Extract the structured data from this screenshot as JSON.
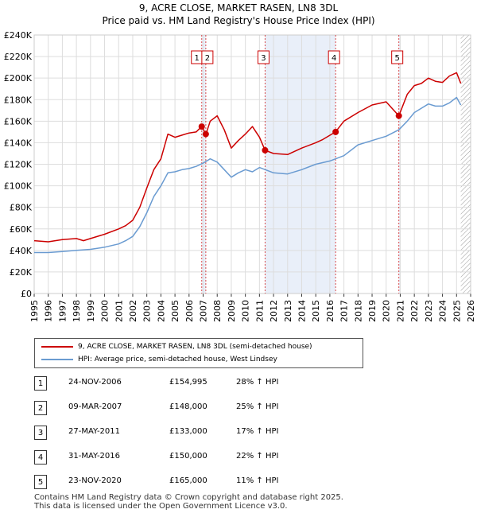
{
  "chart_data": {
    "type": "line",
    "title": "9, ACRE CLOSE, MARKET RASEN, LN8 3DL",
    "subtitle": "Price paid vs. HM Land Registry's House Price Index (HPI)",
    "ylim": [
      0,
      240000
    ],
    "xlim": [
      1995,
      2026
    ],
    "yticks": [
      0,
      20000,
      40000,
      60000,
      80000,
      100000,
      120000,
      140000,
      160000,
      180000,
      200000,
      220000,
      240000
    ],
    "ytick_labels": [
      "£0",
      "£20K",
      "£40K",
      "£60K",
      "£80K",
      "£100K",
      "£120K",
      "£140K",
      "£160K",
      "£180K",
      "£200K",
      "£220K",
      "£240K"
    ],
    "xticks": [
      1995,
      1996,
      1997,
      1998,
      1999,
      2000,
      2001,
      2002,
      2003,
      2004,
      2005,
      2006,
      2007,
      2008,
      2009,
      2010,
      2011,
      2012,
      2013,
      2014,
      2015,
      2016,
      2017,
      2018,
      2019,
      2020,
      2021,
      2022,
      2023,
      2024,
      2025,
      2026
    ],
    "series": [
      {
        "name": "9, ACRE CLOSE, MARKET RASEN, LN8 3DL (semi-detached house)",
        "color": "#cc0000",
        "x": [
          1995.0,
          1996.0,
          1997.0,
          1998.0,
          1998.5,
          1999.0,
          2000.0,
          2001.0,
          2001.5,
          2002.0,
          2002.5,
          2003.0,
          2003.5,
          2004.0,
          2004.5,
          2005.0,
          2005.5,
          2006.0,
          2006.5,
          2006.9,
          2007.2,
          2007.5,
          2008.0,
          2008.5,
          2009.0,
          2009.5,
          2010.0,
          2010.5,
          2011.0,
          2011.4,
          2012.0,
          2013.0,
          2014.0,
          2015.0,
          2015.5,
          2016.4,
          2017.0,
          2018.0,
          2019.0,
          2020.0,
          2020.9,
          2021.5,
          2022.0,
          2022.5,
          2023.0,
          2023.5,
          2024.0,
          2024.5,
          2025.0,
          2025.3
        ],
        "values": [
          49000,
          48000,
          50000,
          51000,
          49000,
          51000,
          55000,
          60000,
          63000,
          68000,
          80000,
          98000,
          115000,
          125000,
          148000,
          145000,
          147000,
          149000,
          150000,
          154995,
          148000,
          160000,
          165000,
          152000,
          135000,
          142000,
          148000,
          155000,
          145000,
          133000,
          130000,
          129000,
          135000,
          140000,
          143000,
          150000,
          160000,
          168000,
          175000,
          178000,
          165000,
          185000,
          193000,
          195000,
          200000,
          197000,
          196000,
          202000,
          205000,
          195000
        ]
      },
      {
        "name": "HPI: Average price, semi-detached house, West Lindsey",
        "color": "#6a9bd1",
        "x": [
          1995.0,
          1996.0,
          1997.0,
          1998.0,
          1999.0,
          2000.0,
          2001.0,
          2001.5,
          2002.0,
          2002.5,
          2003.0,
          2003.5,
          2004.0,
          2004.5,
          2005.0,
          2005.5,
          2006.0,
          2006.5,
          2007.0,
          2007.5,
          2008.0,
          2008.5,
          2009.0,
          2009.5,
          2010.0,
          2010.5,
          2011.0,
          2012.0,
          2013.0,
          2014.0,
          2015.0,
          2016.0,
          2017.0,
          2018.0,
          2019.0,
          2020.0,
          2020.9,
          2021.5,
          2022.0,
          2022.5,
          2023.0,
          2023.5,
          2024.0,
          2024.5,
          2025.0,
          2025.3
        ],
        "values": [
          38000,
          38000,
          39000,
          40000,
          41000,
          43000,
          46000,
          49000,
          53000,
          62000,
          75000,
          90000,
          100000,
          112000,
          113000,
          115000,
          116000,
          118000,
          121000,
          125000,
          122000,
          115000,
          108000,
          112000,
          115000,
          113000,
          117000,
          112000,
          111000,
          115000,
          120000,
          123000,
          128000,
          138000,
          142000,
          146000,
          152000,
          160000,
          168000,
          172000,
          176000,
          174000,
          174000,
          177000,
          182000,
          175000
        ]
      }
    ],
    "sales": [
      {
        "n": "1",
        "x": 2006.9,
        "value": 154995
      },
      {
        "n": "2",
        "x": 2007.19,
        "value": 148000
      },
      {
        "n": "3",
        "x": 2011.4,
        "value": 133000
      },
      {
        "n": "4",
        "x": 2016.41,
        "value": 150000
      },
      {
        "n": "5",
        "x": 2020.9,
        "value": 165000
      }
    ],
    "shaded_ranges": [
      [
        2006.9,
        2007.19
      ],
      [
        2011.4,
        2016.41
      ],
      [
        2020.9,
        2020.95
      ]
    ],
    "hatch_from": 2025.3
  },
  "legend": {
    "sales_label": "9, ACRE CLOSE, MARKET RASEN, LN8 3DL (semi-detached house)",
    "hpi_label": "HPI: Average price, semi-detached house, West Lindsey"
  },
  "table": [
    {
      "n": "1",
      "date": "24-NOV-2006",
      "price": "£154,995",
      "hpi": "28% ↑ HPI"
    },
    {
      "n": "2",
      "date": "09-MAR-2007",
      "price": "£148,000",
      "hpi": "25% ↑ HPI"
    },
    {
      "n": "3",
      "date": "27-MAY-2011",
      "price": "£133,000",
      "hpi": "17% ↑ HPI"
    },
    {
      "n": "4",
      "date": "31-MAY-2016",
      "price": "£150,000",
      "hpi": "22% ↑ HPI"
    },
    {
      "n": "5",
      "date": "23-NOV-2020",
      "price": "£165,000",
      "hpi": "11% ↑ HPI"
    }
  ],
  "footer": {
    "line1": "Contains HM Land Registry data © Crown copyright and database right 2025.",
    "line2": "This data is licensed under the Open Government Licence v3.0."
  }
}
